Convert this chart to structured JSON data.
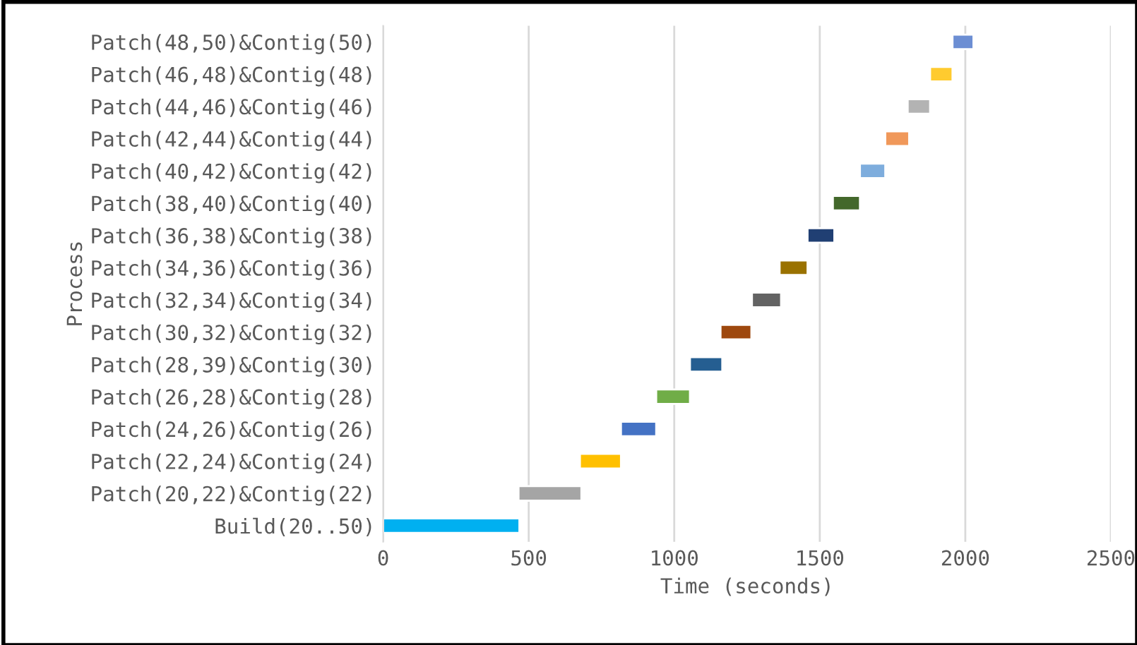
{
  "chart_data": {
    "type": "bar",
    "orientation": "horizontal",
    "xlabel": "Time (seconds)",
    "ylabel": "Process",
    "categories": [
      "Patch(48,50)&Contig(50)",
      "Patch(46,48)&Contig(48)",
      "Patch(44,46)&Contig(46)",
      "Patch(42,44)&Contig(44)",
      "Patch(40,42)&Contig(42)",
      "Patch(38,40)&Contig(40)",
      "Patch(36,38)&Contig(38)",
      "Patch(34,36)&Contig(36)",
      "Patch(32,34)&Contig(34)",
      "Patch(30,32)&Contig(32)",
      "Patch(28,39)&Contig(30)",
      "Patch(26,28)&Contig(28)",
      "Patch(24,26)&Contig(26)",
      "Patch(22,24)&Contig(24)",
      "Patch(20,22)&Contig(22)",
      "Build(20..50)"
    ],
    "base": [
      1956,
      1879,
      1802,
      1725,
      1638,
      1545,
      1458,
      1362,
      1267,
      1159,
      1054,
      938,
      817,
      676,
      465,
      0
    ],
    "values": [
      72,
      77,
      77,
      82,
      87,
      93,
      92,
      96,
      100,
      106,
      111,
      116,
      121,
      141,
      216,
      468
    ],
    "colors": [
      "#6c8ed3",
      "#ffcb2f",
      "#b3b3b3",
      "#f0985a",
      "#7eaddd",
      "#43682b",
      "#203f73",
      "#9a7200",
      "#636363",
      "#9e480e",
      "#255e91",
      "#70ad47",
      "#4472c4",
      "#ffc000",
      "#a5a5a5",
      "#00b0f0"
    ],
    "xlim": [
      0,
      2500
    ],
    "xticks": [
      0,
      500,
      1000,
      1500,
      2000,
      2500
    ],
    "grid": "x",
    "legend": false
  }
}
